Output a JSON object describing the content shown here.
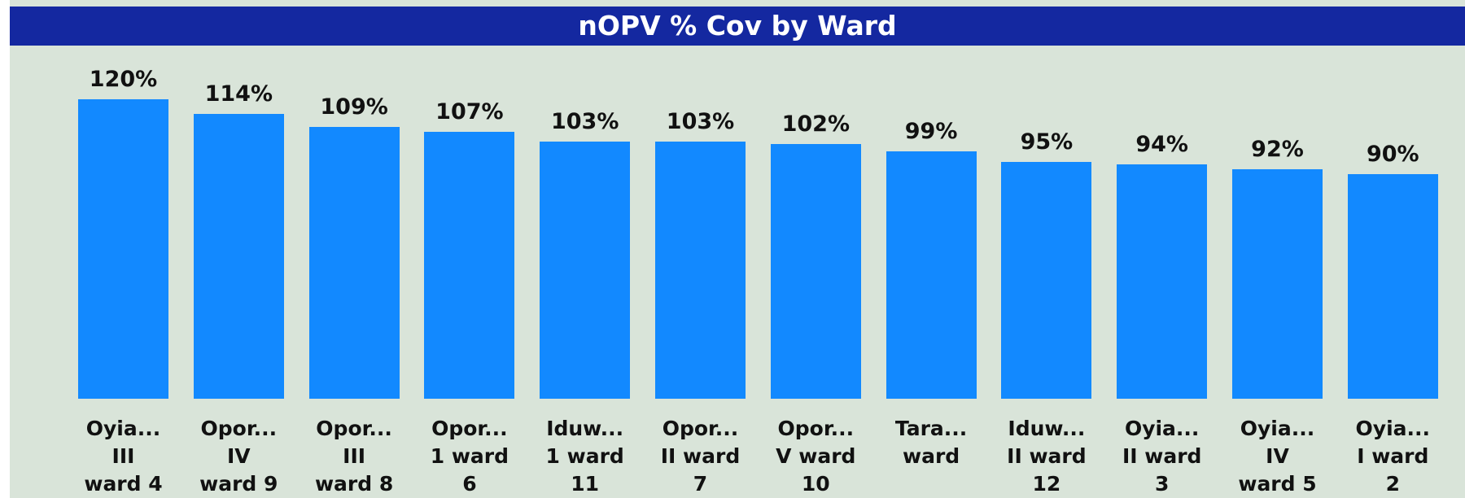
{
  "chart_data": {
    "type": "bar",
    "title": "nOPV % Cov by Ward",
    "categories": [
      "Oyia...\nIII\nward 4",
      "Opor...\nIV\nward 9",
      "Opor...\nIII\nward 8",
      "Opor...\n1 ward\n6",
      "Iduw...\n1 ward\n11",
      "Opor...\nII ward\n7",
      "Opor...\nV ward\n10",
      "Tara...\nward",
      "Iduw...\nII ward\n12",
      "Oyia...\nII ward\n3",
      "Oyia...\nIV\nward 5",
      "Oyia...\nI ward\n2"
    ],
    "values": [
      120,
      114,
      109,
      107,
      103,
      103,
      102,
      99,
      95,
      94,
      92,
      90
    ],
    "value_labels": [
      "120%",
      "114%",
      "109%",
      "107%",
      "103%",
      "103%",
      "102%",
      "99%",
      "95%",
      "94%",
      "92%",
      "90%"
    ],
    "color": "#1289ff"
  }
}
